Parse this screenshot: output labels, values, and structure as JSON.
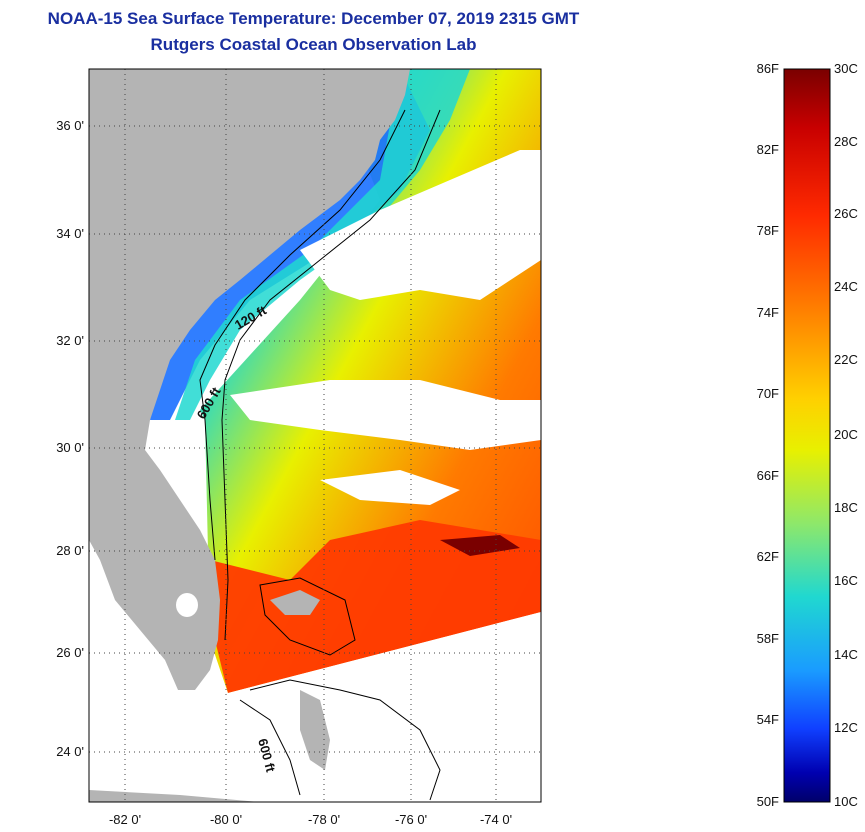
{
  "title": "NOAA-15 Sea Surface Temperature:  December 07, 2019 2315 GMT",
  "subtitle": "Rutgers Coastal Ocean Observation Lab",
  "map": {
    "lat_labels": [
      "36 0'",
      "34 0'",
      "32 0'",
      "30 0'",
      "28 0'",
      "26 0'",
      "24 0'"
    ],
    "lon_labels": [
      "-82 0'",
      "-80 0'",
      "-78 0'",
      "-76 0'",
      "-74 0'"
    ],
    "contours": [
      "120 ft",
      "600 ft",
      "600 ft"
    ],
    "colors": {
      "land": "#b4b4b4",
      "cloud": "#ffffff",
      "contour": "#000000"
    }
  },
  "colorbar": {
    "fahrenheit_labels": [
      "86F",
      "82F",
      "78F",
      "74F",
      "70F",
      "66F",
      "62F",
      "58F",
      "54F",
      "50F"
    ],
    "celsius_labels": [
      "30C",
      "28C",
      "26C",
      "24C",
      "22C",
      "20C",
      "18C",
      "16C",
      "14C",
      "12C",
      "10C"
    ],
    "range_f": [
      50,
      86
    ],
    "range_c": [
      10,
      30
    ],
    "gradient": [
      "#7a0000",
      "#c80000",
      "#ff2a00",
      "#ff7a00",
      "#ffd000",
      "#e8f000",
      "#8ee86a",
      "#20d8d0",
      "#1a9cff",
      "#1040ff",
      "#0000b0",
      "#00006a"
    ]
  }
}
